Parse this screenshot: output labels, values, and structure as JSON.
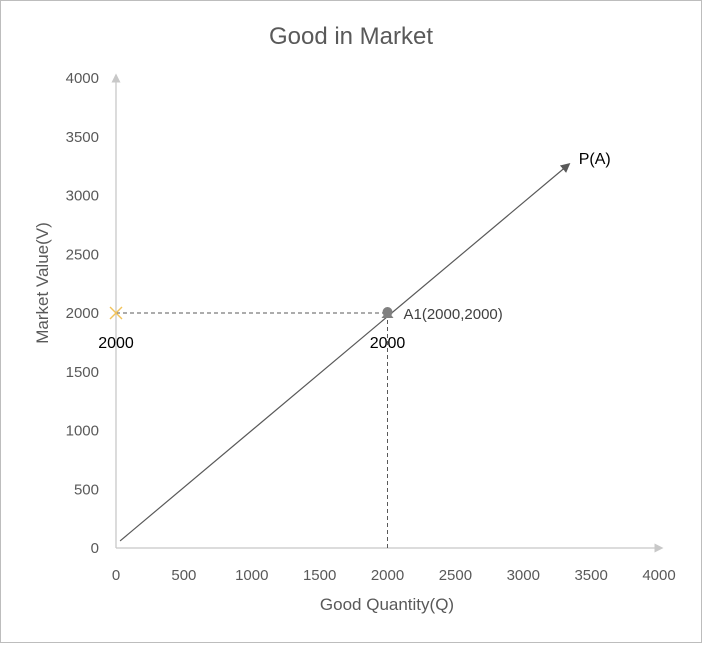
{
  "chart_data": {
    "type": "line",
    "title": "Good in Market",
    "xlabel": "Good Quantity(Q)",
    "ylabel": "Market Value(V)",
    "xlim": [
      0,
      4000
    ],
    "ylim": [
      0,
      4000
    ],
    "x_ticks": [
      "0",
      "500",
      "1000",
      "1500",
      "2000",
      "2500",
      "3000",
      "3500",
      "4000"
    ],
    "y_ticks": [
      "0",
      "500",
      "1000",
      "1500",
      "2000",
      "2500",
      "3000",
      "3500",
      "4000"
    ],
    "grid": false,
    "series": [
      {
        "name": "P(A)",
        "x": [
          30,
          3320
        ],
        "y": [
          60,
          3250
        ]
      }
    ],
    "point": {
      "label": "A1(2000,2000)",
      "x": 2000,
      "y": 2000
    },
    "marker": {
      "x": 0,
      "y": 2000
    },
    "annotations": {
      "y_axis_value": "2000",
      "x_axis_value": "2000"
    },
    "colors": {
      "axis": "#c8c8c8",
      "line": "#595959",
      "dashed": "#595959",
      "marker_x": "#f2c35a",
      "point": "#808080"
    }
  }
}
